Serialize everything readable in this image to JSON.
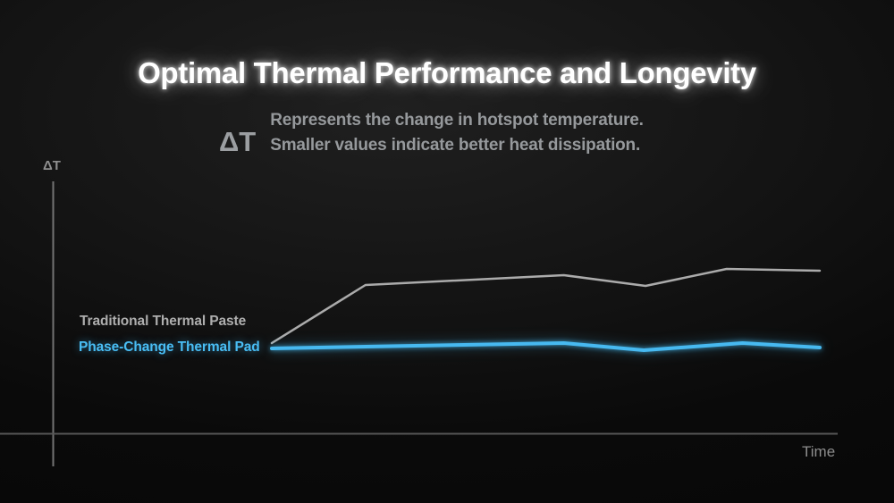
{
  "slide": {
    "title": "Optimal Thermal Performance and Longevity",
    "definition": {
      "symbol": "ΔT",
      "line1": "Represents the change in hotspot temperature.",
      "line2": "Smaller values indicate better heat dissipation."
    }
  },
  "chart": {
    "y_axis_label": "ΔT",
    "x_axis_label": "Time",
    "series_labels": {
      "traditional": "Traditional Thermal Paste",
      "phase_change": "Phase-Change Thermal Pad"
    }
  },
  "colors": {
    "title_white": "#ffffff",
    "text_gray": "#96999c",
    "axis_gray": "#6e6e6e",
    "line_gray": "#ababab",
    "accent_blue": "#47b9f0"
  },
  "chart_data": {
    "type": "line",
    "title": "Optimal Thermal Performance and Longevity",
    "xlabel": "Time",
    "ylabel": "ΔT",
    "grid": false,
    "axis_tick_labels": "none shown (qualitative sketch chart)",
    "units": "relative ΔT units (no numeric scale shown); higher = worse heat dissipation",
    "legend_position": "labels at left of each line start",
    "series": [
      {
        "name": "Traditional Thermal Paste",
        "color": "#ababab",
        "x": [
          0,
          0.171,
          0.533,
          0.682,
          0.83,
          1.0
        ],
        "values": [
          101,
          166,
          177,
          165,
          184,
          182
        ],
        "trend": "rises sharply then climbs with small dips (pump-out degradation)"
      },
      {
        "name": "Phase-Change Thermal Pad",
        "color": "#47b9f0",
        "x": [
          0,
          0.171,
          0.533,
          0.679,
          0.859,
          1.0
        ],
        "values": [
          95,
          97,
          101,
          93,
          101,
          96
        ],
        "trend": "stays low and flat over time"
      }
    ]
  }
}
